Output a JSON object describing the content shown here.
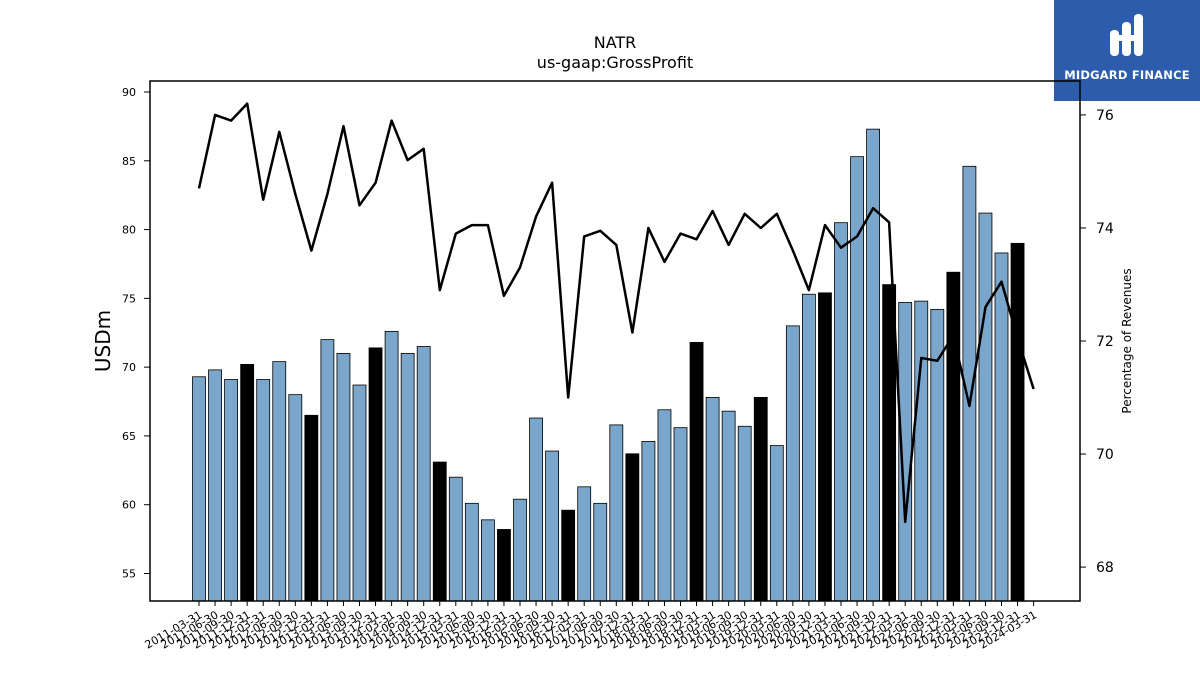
{
  "title": "NATR",
  "subtitle": "us-gaap:GrossProfit",
  "logo": {
    "name": "MIDGARD FINANCE"
  },
  "colors": {
    "bar_quarter": "#7aa6cc",
    "bar_q4": "#000000",
    "line": "#000000",
    "logo_bg": "#2d5cad"
  },
  "chart_data": {
    "type": "bar",
    "title": "NATR",
    "subtitle": "us-gaap:GrossProfit",
    "ylabel": "USDm",
    "y2label": "Percentage of Revenues",
    "ylim": [
      53,
      90.8
    ],
    "y2lim": [
      67.4,
      76.6
    ],
    "yticks": [
      55,
      60,
      65,
      70,
      75,
      80,
      85,
      90
    ],
    "y2ticks": [
      68,
      70,
      72,
      74,
      76
    ],
    "categories": [
      "2011-03-31",
      "2011-06-30",
      "2011-09-30",
      "2011-12-31",
      "2012-03-31",
      "2012-06-30",
      "2012-09-30",
      "2012-12-31",
      "2013-03-31",
      "2013-06-30",
      "2013-09-30",
      "2013-12-31",
      "2014-03-31",
      "2014-06-30",
      "2014-09-30",
      "2014-12-31",
      "2015-03-31",
      "2015-06-30",
      "2015-09-30",
      "2015-12-31",
      "2016-03-31",
      "2016-06-30",
      "2016-09-30",
      "2016-12-31",
      "2017-03-31",
      "2017-06-30",
      "2017-09-30",
      "2017-12-31",
      "2018-03-31",
      "2018-06-30",
      "2018-09-30",
      "2018-12-31",
      "2019-03-31",
      "2019-06-30",
      "2019-09-30",
      "2019-12-31",
      "2020-03-31",
      "2020-06-30",
      "2020-09-30",
      "2020-12-31",
      "2021-03-31",
      "2021-06-30",
      "2021-09-30",
      "2021-12-31",
      "2022-03-31",
      "2022-06-30",
      "2022-09-30",
      "2022-12-31",
      "2023-03-31",
      "2023-06-30",
      "2023-09-30",
      "2023-12-31",
      "2024-03-31"
    ],
    "series": [
      {
        "kind": "bar",
        "axis": "left",
        "values": [
          69.3,
          69.8,
          69.1,
          70.2,
          69.1,
          70.4,
          68.0,
          66.5,
          72.0,
          71.0,
          68.7,
          71.4,
          72.6,
          71.0,
          71.5,
          63.1,
          62.0,
          60.1,
          58.9,
          58.2,
          60.4,
          66.3,
          63.9,
          59.6,
          61.3,
          60.1,
          65.8,
          63.7,
          64.6,
          66.9,
          65.6,
          71.8,
          67.8,
          66.8,
          65.7,
          67.8,
          64.3,
          73.0,
          75.3,
          75.4,
          80.5,
          85.3,
          87.3,
          76.0,
          74.7,
          74.8,
          74.2,
          76.9,
          84.6,
          81.2,
          78.3,
          79.0,
          null
        ]
      },
      {
        "kind": "line",
        "axis": "right",
        "values": [
          74.7,
          76.0,
          75.9,
          76.2,
          74.5,
          75.7,
          74.6,
          73.6,
          74.6,
          75.8,
          74.4,
          74.8,
          75.9,
          75.2,
          75.4,
          72.9,
          73.9,
          74.05,
          74.05,
          72.8,
          73.3,
          74.2,
          74.8,
          71.0,
          73.85,
          73.95,
          73.7,
          72.15,
          74.0,
          73.4,
          73.9,
          73.8,
          74.3,
          73.7,
          74.25,
          74.0,
          74.25,
          73.6,
          72.9,
          74.05,
          73.65,
          73.85,
          74.35,
          74.1,
          68.8,
          71.7,
          71.65,
          72.1,
          70.85,
          72.6,
          73.05,
          72.05,
          71.15
        ]
      }
    ],
    "q4_highlight": "December quarters drawn in black",
    "legend": "none",
    "grid": false
  }
}
